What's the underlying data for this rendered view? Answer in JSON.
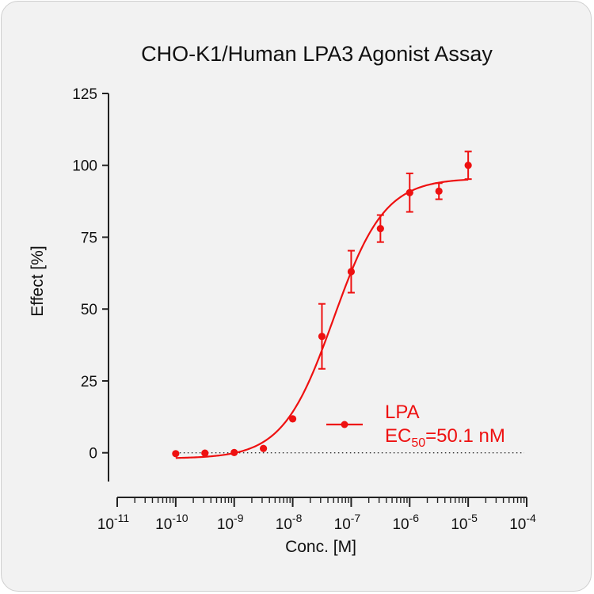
{
  "chart_data": {
    "type": "scatter",
    "title": "CHO-K1/Human LPA3 Agonist Assay",
    "xlabel": "Conc. [M]",
    "ylabel": "Effect  [%]",
    "xscale": "log",
    "xlim": [
      1e-11,
      0.0001
    ],
    "ylim": [
      -10,
      125
    ],
    "yticks": [
      0,
      25,
      50,
      75,
      100,
      125
    ],
    "xticks": [
      {
        "base": "10",
        "exp": "-11",
        "value": 1e-11
      },
      {
        "base": "10",
        "exp": "-10",
        "value": 1e-10
      },
      {
        "base": "10",
        "exp": "-9",
        "value": 1e-09
      },
      {
        "base": "10",
        "exp": "-8",
        "value": 1e-08
      },
      {
        "base": "10",
        "exp": "-7",
        "value": 1e-07
      },
      {
        "base": "10",
        "exp": "-6",
        "value": 1e-06
      },
      {
        "base": "10",
        "exp": "-5",
        "value": 1e-05
      },
      {
        "base": "10",
        "exp": "-4",
        "value": 0.0001
      }
    ],
    "zero_line": "dotted",
    "grid": false,
    "series": [
      {
        "name": "LPA",
        "color": "#ee1111",
        "x": [
          1e-10,
          3.16e-10,
          1e-09,
          3.16e-09,
          1e-08,
          3.16e-08,
          1e-07,
          3.16e-07,
          1e-06,
          3.16e-06,
          1e-05
        ],
        "y": [
          -0.3,
          -0.1,
          0.1,
          1.5,
          11.8,
          40.5,
          63.0,
          78.0,
          90.5,
          91.0,
          100.0
        ],
        "err": [
          0,
          0,
          0,
          0,
          0,
          11.3,
          7.3,
          4.7,
          6.7,
          2.8,
          4.8
        ]
      }
    ],
    "fit": {
      "bottom": -2.0,
      "top": 95.5,
      "ec50": 5.01e-08,
      "hill": 1.0,
      "x_start": 1e-10,
      "x_end": 1e-05
    },
    "legend": {
      "position": "inside lower-right",
      "name": "LPA",
      "ec50_prefix": "EC",
      "ec50_sub": "50",
      "ec50_value": "=50.1 nM"
    }
  }
}
